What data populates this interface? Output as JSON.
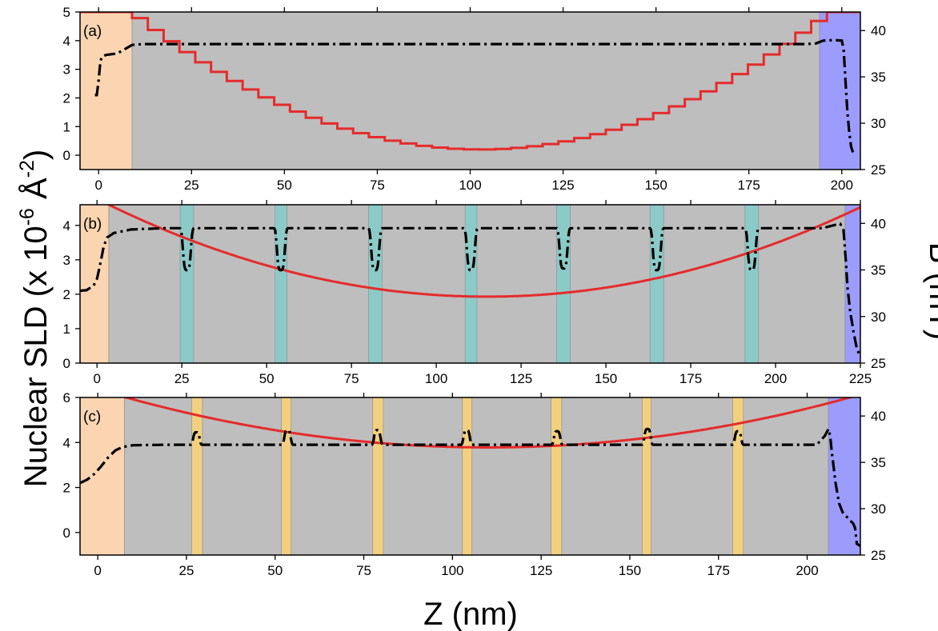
{
  "figure": {
    "ylabel_left": "Nuclear SLD (x 10",
    "ylabel_left_exp": "-6",
    "ylabel_left_unit": " Å",
    "ylabel_left_unit_exp": "-2",
    "ylabel_left_close": ")",
    "ylabel_right": "B (mT)",
    "xlabel": "Z (nm)"
  },
  "colors": {
    "substrate": "#FBD5B2",
    "film": "#BEBEBE",
    "cap": "#9C9CFC",
    "spacer_b": "#8CCAC8",
    "spacer_c": "#F2D080",
    "field": "#E52B2B",
    "sld": "#000000"
  },
  "chart_data": [
    {
      "panel_label": "(a)",
      "type": "line",
      "xlim": [
        -5,
        205
      ],
      "ylim": [
        -0.5,
        5
      ],
      "y2lim": [
        25,
        42
      ],
      "xticks": [
        0,
        25,
        50,
        75,
        100,
        125,
        150,
        175,
        200
      ],
      "yticks": [
        0,
        1,
        2,
        3,
        4,
        5
      ],
      "y2ticks": [
        25,
        30,
        35,
        40
      ],
      "regions": [
        {
          "kind": "substrate",
          "from": -5,
          "to": 9
        },
        {
          "kind": "film",
          "from": 9,
          "to": 194
        },
        {
          "kind": "cap",
          "from": 194,
          "to": 205
        }
      ],
      "field_curve": {
        "axis": "y",
        "shape": "stepped-parabola",
        "center": 103,
        "min": 0.2,
        "left_top_x": 9,
        "right_top_x": 196,
        "top": 5,
        "steps": 44
      },
      "sld_profile": {
        "axis": "y",
        "x": [
          -1,
          -0.5,
          0,
          0.5,
          1,
          2,
          5,
          7,
          9,
          12,
          60,
          120,
          190,
          193,
          195,
          198,
          200,
          200.5,
          201,
          201.5,
          202,
          202.5,
          203
        ],
        "y": [
          2.1,
          2.1,
          2.6,
          3.3,
          3.45,
          3.5,
          3.55,
          3.7,
          3.85,
          3.88,
          3.88,
          3.88,
          3.88,
          3.9,
          4.0,
          4.02,
          4.0,
          3.7,
          2.6,
          1.5,
          0.8,
          0.3,
          0.1
        ]
      }
    },
    {
      "panel_label": "(b)",
      "type": "line",
      "xlim": [
        -5,
        225
      ],
      "ylim": [
        0,
        4.6
      ],
      "y2lim": [
        25,
        42
      ],
      "xticks": [
        0,
        25,
        50,
        75,
        100,
        125,
        150,
        175,
        200,
        225
      ],
      "yticks": [
        0,
        1,
        2,
        3,
        4
      ],
      "y2ticks": [
        25,
        30,
        35,
        40
      ],
      "regions": [
        {
          "kind": "substrate",
          "from": -5,
          "to": 3.5
        },
        {
          "kind": "film",
          "from": 3.5,
          "to": 220.5
        },
        {
          "kind": "cap",
          "from": 220.5,
          "to": 225
        }
      ],
      "spacers": [
        [
          24.5,
          28.5
        ],
        [
          52.5,
          56
        ],
        [
          80,
          84
        ],
        [
          108.5,
          112
        ],
        [
          135.5,
          139.5
        ],
        [
          163,
          167
        ],
        [
          191,
          195
        ]
      ],
      "field_curve": {
        "axis": "y",
        "shape": "parabola",
        "center": 115,
        "min": 1.93,
        "left_x": 3.5,
        "right_x": 222,
        "edge_value": 4.6
      },
      "sld_profile": {
        "axis": "y",
        "plateau": 3.92,
        "start": [
          [
            -5,
            2.1
          ],
          [
            -3,
            2.12
          ],
          [
            -1,
            2.25
          ],
          [
            0,
            2.45
          ],
          [
            1,
            2.9
          ],
          [
            2,
            3.4
          ],
          [
            3,
            3.65
          ],
          [
            5,
            3.78
          ],
          [
            10,
            3.88
          ],
          [
            20,
            3.92
          ]
        ],
        "dips": [
          {
            "x": 26.5,
            "min": 2.7
          },
          {
            "x": 54.2,
            "min": 2.7
          },
          {
            "x": 82,
            "min": 2.7
          },
          {
            "x": 110.2,
            "min": 2.7
          },
          {
            "x": 137.5,
            "min": 2.75
          },
          {
            "x": 165,
            "min": 2.7
          },
          {
            "x": 193,
            "min": 2.7
          }
        ],
        "end": [
          [
            215,
            3.95
          ],
          [
            219,
            4.05
          ],
          [
            220,
            3.9
          ],
          [
            220.7,
            3.0
          ],
          [
            221.2,
            2.2
          ],
          [
            222,
            1.5
          ],
          [
            223,
            0.9
          ],
          [
            224,
            0.4
          ],
          [
            225,
            0.2
          ]
        ]
      }
    },
    {
      "panel_label": "(c)",
      "type": "line",
      "xlim": [
        -5,
        215
      ],
      "ylim": [
        -1,
        6
      ],
      "y2lim": [
        25,
        42
      ],
      "xticks": [
        0,
        25,
        50,
        75,
        100,
        125,
        150,
        175,
        200
      ],
      "yticks": [
        0,
        2,
        4,
        6
      ],
      "y2ticks": [
        25,
        30,
        35,
        40
      ],
      "regions": [
        {
          "kind": "substrate",
          "from": -5,
          "to": 7.5
        },
        {
          "kind": "film",
          "from": 7.5,
          "to": 206
        },
        {
          "kind": "cap",
          "from": 206,
          "to": 215
        }
      ],
      "spacers": [
        [
          26.5,
          29.5
        ],
        [
          51.8,
          54.5
        ],
        [
          77.5,
          80.5
        ],
        [
          102.8,
          105.5
        ],
        [
          127.8,
          130.8
        ],
        [
          153.5,
          156
        ],
        [
          179,
          182
        ]
      ],
      "field_curve": {
        "axis": "y",
        "shape": "parabola",
        "center": 110,
        "min": 3.78,
        "left_x": 8,
        "right_x": 206,
        "edge_value": 6
      },
      "sld_profile": {
        "axis": "y",
        "plateau": 3.9,
        "start": [
          [
            -5,
            2.2
          ],
          [
            -3,
            2.35
          ],
          [
            -1,
            2.6
          ],
          [
            1,
            2.95
          ],
          [
            3,
            3.35
          ],
          [
            5,
            3.65
          ],
          [
            7,
            3.8
          ],
          [
            10,
            3.88
          ],
          [
            20,
            3.9
          ]
        ],
        "peaks": [
          {
            "x": 27.8,
            "max": 4.45
          },
          {
            "x": 53.5,
            "max": 4.55
          },
          {
            "x": 78.8,
            "max": 4.55
          },
          {
            "x": 104,
            "max": 4.55
          },
          {
            "x": 129.5,
            "max": 4.5
          },
          {
            "x": 155,
            "max": 4.6
          },
          {
            "x": 180.5,
            "max": 4.5
          }
        ],
        "end": [
          [
            203,
            3.95
          ],
          [
            205,
            4.3
          ],
          [
            206,
            4.6
          ],
          [
            206.5,
            4.3
          ],
          [
            207,
            3.5
          ],
          [
            208,
            2.2
          ],
          [
            209,
            1.3
          ],
          [
            210,
            0.9
          ],
          [
            212,
            0.55
          ],
          [
            213,
            0.4
          ],
          [
            213.5,
            0.2
          ],
          [
            214,
            -0.5
          ],
          [
            215,
            -0.6
          ]
        ]
      }
    }
  ]
}
